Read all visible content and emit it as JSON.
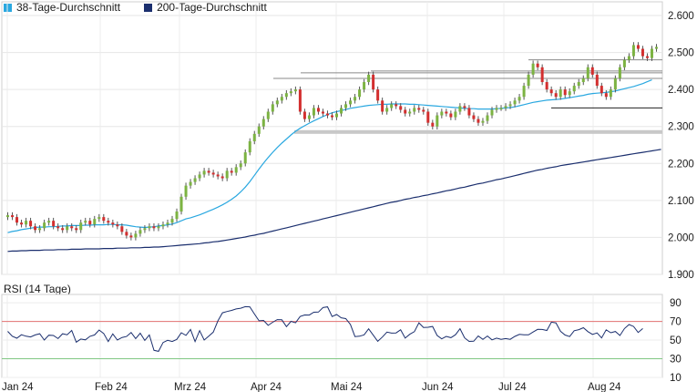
{
  "legend": [
    {
      "label": "38-Tage-Durchschnitt",
      "color": "#2aa8e0"
    },
    {
      "label": "200-Tage-Durchschnitt",
      "color": "#1b2f6e"
    }
  ],
  "rsi_title": "RSI (14 Tage)",
  "colors": {
    "up": "#7cb342",
    "down": "#d32f2f",
    "sma38": "#2aa8e0",
    "sma200": "#1b2f6e",
    "rsi": "#1b2f6e",
    "overbought": "#e57373",
    "oversold": "#81c784",
    "support_band": "#c8c8c8"
  },
  "chart_data": [
    {
      "type": "candlestick",
      "x_ticks": [
        "Jan 24",
        "Feb 24",
        "Mrz 24",
        "Apr 24",
        "Mai 24",
        "Jun 24",
        "Jul 24",
        "Aug 24"
      ],
      "y_ticks": [
        "2.600",
        "2.500",
        "2.400",
        "2.300",
        "2.200",
        "2.100",
        "2.000",
        "1.900"
      ],
      "ylim": [
        1.9,
        2.6
      ],
      "closes": [
        2.06,
        2.055,
        2.04,
        2.035,
        2.045,
        2.03,
        2.02,
        2.025,
        2.04,
        2.045,
        2.03,
        2.025,
        2.02,
        2.03,
        2.025,
        2.02,
        2.04,
        2.045,
        2.035,
        2.05,
        2.055,
        2.045,
        2.04,
        2.035,
        2.03,
        2.015,
        2.005,
        2.0,
        2.01,
        2.02,
        2.025,
        2.03,
        2.025,
        2.03,
        2.035,
        2.04,
        2.05,
        2.07,
        2.11,
        2.14,
        2.15,
        2.16,
        2.17,
        2.18,
        2.175,
        2.17,
        2.165,
        2.16,
        2.18,
        2.175,
        2.19,
        2.2,
        2.23,
        2.26,
        2.28,
        2.3,
        2.32,
        2.34,
        2.36,
        2.37,
        2.38,
        2.39,
        2.395,
        2.4,
        2.34,
        2.32,
        2.33,
        2.35,
        2.34,
        2.335,
        2.33,
        2.325,
        2.335,
        2.35,
        2.36,
        2.37,
        2.38,
        2.4,
        2.42,
        2.44,
        2.4,
        2.37,
        2.34,
        2.35,
        2.36,
        2.355,
        2.345,
        2.335,
        2.34,
        2.35,
        2.345,
        2.34,
        2.31,
        2.3,
        2.33,
        2.34,
        2.335,
        2.325,
        2.34,
        2.355,
        2.35,
        2.33,
        2.32,
        2.31,
        2.315,
        2.33,
        2.345,
        2.35,
        2.35,
        2.355,
        2.36,
        2.37,
        2.38,
        2.41,
        2.44,
        2.47,
        2.46,
        2.42,
        2.4,
        2.39,
        2.38,
        2.4,
        2.385,
        2.395,
        2.41,
        2.42,
        2.43,
        2.46,
        2.44,
        2.41,
        2.39,
        2.38,
        2.4,
        2.43,
        2.46,
        2.48,
        2.49,
        2.52,
        2.51,
        2.49,
        2.485,
        2.51,
        2.515
      ],
      "series": [
        {
          "name": "38-Tage-Durchschnitt",
          "values": [
            2.013,
            2.016,
            2.018,
            2.021,
            2.023,
            2.025,
            2.027,
            2.028,
            2.028,
            2.029,
            2.029,
            2.03,
            2.031,
            2.031,
            2.032,
            2.032,
            2.032,
            2.033,
            2.033,
            2.034,
            2.034,
            2.034,
            2.035,
            2.035,
            2.034,
            2.034,
            2.033,
            2.031,
            2.029,
            2.028,
            2.027,
            2.028,
            2.029,
            2.031,
            2.032,
            2.034,
            2.036,
            2.04,
            2.045,
            2.05,
            2.053,
            2.057,
            2.061,
            2.066,
            2.071,
            2.076,
            2.082,
            2.088,
            2.095,
            2.103,
            2.112,
            2.123,
            2.136,
            2.151,
            2.168,
            2.185,
            2.201,
            2.216,
            2.23,
            2.243,
            2.255,
            2.266,
            2.277,
            2.287,
            2.295,
            2.302,
            2.309,
            2.315,
            2.321,
            2.327,
            2.332,
            2.337,
            2.34,
            2.343,
            2.346,
            2.349,
            2.351,
            2.353,
            2.355,
            2.357,
            2.358,
            2.359,
            2.36,
            2.36,
            2.361,
            2.361,
            2.361,
            2.361,
            2.36,
            2.36,
            2.359,
            2.358,
            2.357,
            2.356,
            2.355,
            2.354,
            2.353,
            2.352,
            2.351,
            2.35,
            2.349,
            2.348,
            2.348,
            2.347,
            2.347,
            2.347,
            2.347,
            2.348,
            2.349,
            2.35,
            2.351,
            2.353,
            2.356,
            2.359,
            2.362,
            2.365,
            2.367,
            2.369,
            2.371,
            2.372,
            2.373,
            2.374,
            2.376,
            2.378,
            2.38,
            2.382,
            2.384,
            2.387,
            2.389,
            2.39,
            2.391,
            2.392,
            2.394,
            2.396,
            2.399,
            2.402,
            2.405,
            2.408,
            2.412,
            2.416,
            2.421,
            2.426
          ]
        },
        {
          "name": "200-Tage-Durchschnitt",
          "values": [
            1.962,
            1.963,
            1.963,
            1.964,
            1.964,
            1.965,
            1.965,
            1.965,
            1.966,
            1.966,
            1.966,
            1.967,
            1.967,
            1.967,
            1.968,
            1.968,
            1.968,
            1.969,
            1.969,
            1.969,
            1.969,
            1.97,
            1.97,
            1.97,
            1.971,
            1.971,
            1.971,
            1.972,
            1.972,
            1.972,
            1.973,
            1.973,
            1.974,
            1.974,
            1.975,
            1.976,
            1.977,
            1.978,
            1.979,
            1.98,
            1.981,
            1.982,
            1.983,
            1.985,
            1.986,
            1.988,
            1.989,
            1.991,
            1.993,
            1.995,
            1.997,
            1.999,
            2.001,
            2.004,
            2.006,
            2.009,
            2.011,
            2.014,
            2.017,
            2.02,
            2.023,
            2.026,
            2.029,
            2.032,
            2.035,
            2.038,
            2.041,
            2.044,
            2.047,
            2.05,
            2.053,
            2.056,
            2.059,
            2.062,
            2.065,
            2.068,
            2.071,
            2.074,
            2.077,
            2.08,
            2.083,
            2.086,
            2.089,
            2.092,
            2.095,
            2.097,
            2.1,
            2.103,
            2.105,
            2.108,
            2.11,
            2.113,
            2.115,
            2.118,
            2.12,
            2.123,
            2.126,
            2.128,
            2.131,
            2.134,
            2.136,
            2.139,
            2.142,
            2.145,
            2.147,
            2.15,
            2.153,
            2.156,
            2.158,
            2.161,
            2.164,
            2.167,
            2.17,
            2.173,
            2.176,
            2.179,
            2.182,
            2.184,
            2.187,
            2.189,
            2.191,
            2.194,
            2.196,
            2.198,
            2.2,
            2.202,
            2.204,
            2.206,
            2.208,
            2.21,
            2.212,
            2.214,
            2.216,
            2.218,
            2.22,
            2.222,
            2.224,
            2.226,
            2.228,
            2.23,
            2.232,
            2.234,
            2.236,
            2.238
          ]
        }
      ],
      "support_band": [
        2.28,
        2.29
      ],
      "resistance_lines": [
        2.43,
        2.445,
        2.45,
        2.48,
        2.35
      ]
    },
    {
      "type": "line",
      "title": "RSI (14 Tage)",
      "x_ticks": [
        "Jan 24",
        "Feb 24",
        "Mrz 24",
        "Apr 24",
        "Mai 24",
        "Jun 24",
        "Jul 24",
        "Aug 24"
      ],
      "y_ticks": [
        "90",
        "70",
        "50",
        "30",
        "10"
      ],
      "ylim": [
        10,
        95
      ],
      "levels": [
        70,
        30
      ],
      "values": [
        59.3,
        54.2,
        52.0,
        55.7,
        54.2,
        53.4,
        55.5,
        56.8,
        50.1,
        55.2,
        54.9,
        51.6,
        56.8,
        55.7,
        60.3,
        47.8,
        51.1,
        50.3,
        54.1,
        55.5,
        60.8,
        57.1,
        48.5,
        56.6,
        50.1,
        52.8,
        53.9,
        58.2,
        51.6,
        57.4,
        49.7,
        55.5,
        39.0,
        37.9,
        47.4,
        49.8,
        48.5,
        50.7,
        57.9,
        55.0,
        61.4,
        48.4,
        60.1,
        50.1,
        54.2,
        58.6,
        70.7,
        79.3,
        80.6,
        81.8,
        83.4,
        84.2,
        85.8,
        85.6,
        77.9,
        70.7,
        71.1,
        65.8,
        69.1,
        71.9,
        71.7,
        64.4,
        70.1,
        68.5,
        75.3,
        76.9,
        76.8,
        79.9,
        80.1,
        84.8,
        85.6,
        75.3,
        77.4,
        73.9,
        73.0,
        66.8,
        53.8,
        54.2,
        55.6,
        62.1,
        55.3,
        48.7,
        53.3,
        58.6,
        57.5,
        57.7,
        61.1,
        52.1,
        56.2,
        59.0,
        68.5,
        63.5,
        63.7,
        64.6,
        54.9,
        51.3,
        54.0,
        52.6,
        55.7,
        62.2,
        52.4,
        48.6,
        48.8,
        54.4,
        50.7,
        54.4,
        50.3,
        52.1,
        50.8,
        51.6,
        50.8,
        54.0,
        56.1,
        55.7,
        55.6,
        58.7,
        61.5,
        61.4,
        60.3,
        69.2,
        68.4,
        59.4,
        55.4,
        53.8,
        60.0,
        61.2,
        63.2,
        59.0,
        56.1,
        57.7,
        52.3,
        61.0,
        57.9,
        59.2,
        54.9,
        62.4,
        66.7,
        64.6,
        58.2,
        62.4
      ]
    }
  ]
}
